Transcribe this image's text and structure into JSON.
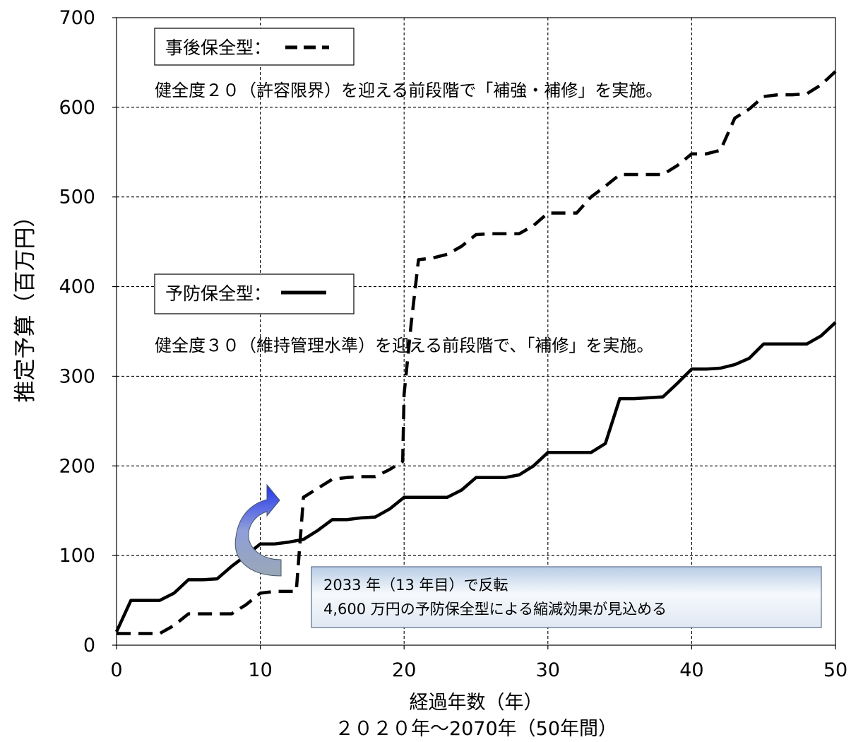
{
  "chart_data": {
    "type": "line",
    "xlabel": "経過年数（年）",
    "xlabel_sub": "２０２０年～2070年（50年間）",
    "ylabel": "推定予算（百万円）",
    "xlim": [
      0,
      50
    ],
    "ylim": [
      0,
      700
    ],
    "x_ticks": [
      0,
      10,
      20,
      30,
      40,
      50
    ],
    "y_ticks": [
      0,
      100,
      200,
      300,
      400,
      500,
      600,
      700
    ],
    "grid": true,
    "series": [
      {
        "name": "事後保全型",
        "line_style": "dashed",
        "color": "#000000",
        "x": [
          0,
          1,
          3,
          4,
          5,
          7,
          8,
          9,
          10,
          11,
          12,
          12.5,
          13,
          14,
          15,
          16,
          17,
          18,
          19,
          19.9,
          20,
          20.5,
          21,
          22,
          23,
          24,
          25,
          26,
          27,
          28,
          29,
          30,
          31,
          32,
          33,
          34,
          35,
          36,
          37,
          38,
          39,
          40,
          41,
          42,
          43,
          44,
          45,
          46,
          47,
          48,
          49,
          50
        ],
        "values": [
          13,
          13,
          13,
          22,
          35,
          35,
          35,
          45,
          58,
          60,
          60,
          60,
          165,
          175,
          185,
          187,
          188,
          188,
          196,
          205,
          280,
          360,
          430,
          432,
          436,
          445,
          458,
          459,
          459,
          459,
          468,
          482,
          482,
          482,
          500,
          512,
          525,
          525,
          525,
          525,
          535,
          548,
          548,
          552,
          588,
          598,
          612,
          614,
          614,
          615,
          625,
          640
        ]
      },
      {
        "name": "予防保全型",
        "line_style": "solid",
        "color": "#000000",
        "x": [
          0,
          1,
          2,
          3,
          4,
          5,
          6,
          7,
          8,
          9,
          10,
          11,
          12,
          13,
          14,
          15,
          16,
          17,
          18,
          19,
          20,
          21,
          22,
          23,
          24,
          25,
          26,
          27,
          28,
          29,
          30,
          31,
          32,
          33,
          34,
          35,
          36,
          37,
          38,
          39,
          40,
          41,
          42,
          43,
          44,
          45,
          46,
          47,
          48,
          49,
          50
        ],
        "values": [
          15,
          50,
          50,
          50,
          58,
          73,
          73,
          74,
          88,
          100,
          113,
          113,
          115,
          118,
          128,
          140,
          140,
          142,
          143,
          152,
          165,
          165,
          165,
          165,
          173,
          187,
          187,
          187,
          190,
          200,
          215,
          215,
          215,
          215,
          225,
          275,
          275,
          276,
          277,
          292,
          308,
          308,
          309,
          313,
          320,
          336,
          336,
          336,
          336,
          345,
          360
        ]
      }
    ],
    "annotations": {
      "legend_post": {
        "label": "事後保全型：",
        "description": "健全度２０（許容限界）を迎える前段階で「補強・補修」を実施。"
      },
      "legend_prev": {
        "label": "予防保全型：",
        "description": "健全度３０（維持管理水準）を迎える前段階で、「補修」を実施。"
      },
      "crossover_line1": "2033 年（13 年目）で反転",
      "crossover_line2": "4,600 万円の予防保全型による縮減効果が見込める"
    }
  }
}
